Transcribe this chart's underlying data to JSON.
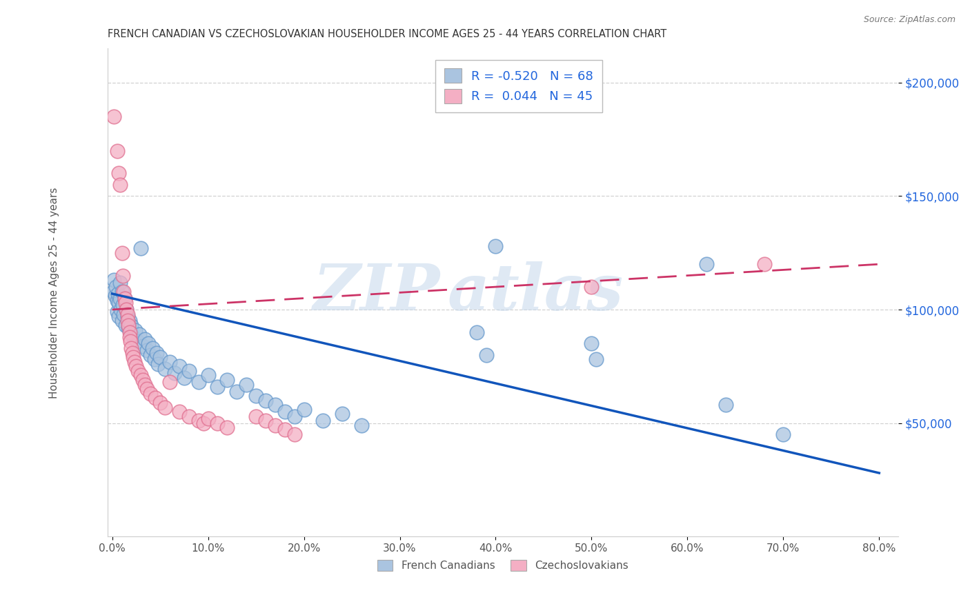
{
  "title": "FRENCH CANADIAN VS CZECHOSLOVAKIAN HOUSEHOLDER INCOME AGES 25 - 44 YEARS CORRELATION CHART",
  "source": "Source: ZipAtlas.com",
  "ylabel": "Householder Income Ages 25 - 44 years",
  "xlabel_ticks": [
    "0.0%",
    "10.0%",
    "20.0%",
    "30.0%",
    "40.0%",
    "50.0%",
    "60.0%",
    "70.0%",
    "80.0%"
  ],
  "ytick_labels": [
    "$50,000",
    "$100,000",
    "$150,000",
    "$200,000"
  ],
  "ytick_values": [
    50000,
    100000,
    150000,
    200000
  ],
  "xlim": [
    -0.005,
    0.82
  ],
  "ylim": [
    0,
    215000
  ],
  "blue_color": "#aac4e0",
  "pink_color": "#f4afc4",
  "blue_edge_color": "#6699cc",
  "pink_edge_color": "#e07090",
  "blue_line_color": "#1155bb",
  "pink_line_color": "#cc3366",
  "blue_scatter": [
    [
      0.001,
      108000
    ],
    [
      0.002,
      113000
    ],
    [
      0.003,
      106000
    ],
    [
      0.004,
      110000
    ],
    [
      0.005,
      104000
    ],
    [
      0.005,
      99000
    ],
    [
      0.006,
      107000
    ],
    [
      0.007,
      103000
    ],
    [
      0.007,
      97000
    ],
    [
      0.008,
      112000
    ],
    [
      0.008,
      105000
    ],
    [
      0.009,
      100000
    ],
    [
      0.01,
      108000
    ],
    [
      0.01,
      95000
    ],
    [
      0.011,
      102000
    ],
    [
      0.012,
      98000
    ],
    [
      0.013,
      105000
    ],
    [
      0.014,
      93000
    ],
    [
      0.015,
      100000
    ],
    [
      0.016,
      97000
    ],
    [
      0.017,
      92000
    ],
    [
      0.018,
      95000
    ],
    [
      0.019,
      90000
    ],
    [
      0.02,
      93000
    ],
    [
      0.022,
      88000
    ],
    [
      0.024,
      91000
    ],
    [
      0.026,
      86000
    ],
    [
      0.028,
      89000
    ],
    [
      0.03,
      127000
    ],
    [
      0.032,
      84000
    ],
    [
      0.034,
      87000
    ],
    [
      0.036,
      82000
    ],
    [
      0.038,
      85000
    ],
    [
      0.04,
      80000
    ],
    [
      0.042,
      83000
    ],
    [
      0.044,
      78000
    ],
    [
      0.046,
      81000
    ],
    [
      0.048,
      76000
    ],
    [
      0.05,
      79000
    ],
    [
      0.055,
      74000
    ],
    [
      0.06,
      77000
    ],
    [
      0.065,
      72000
    ],
    [
      0.07,
      75000
    ],
    [
      0.075,
      70000
    ],
    [
      0.08,
      73000
    ],
    [
      0.09,
      68000
    ],
    [
      0.1,
      71000
    ],
    [
      0.11,
      66000
    ],
    [
      0.12,
      69000
    ],
    [
      0.13,
      64000
    ],
    [
      0.14,
      67000
    ],
    [
      0.15,
      62000
    ],
    [
      0.16,
      60000
    ],
    [
      0.17,
      58000
    ],
    [
      0.18,
      55000
    ],
    [
      0.19,
      53000
    ],
    [
      0.2,
      56000
    ],
    [
      0.22,
      51000
    ],
    [
      0.24,
      54000
    ],
    [
      0.26,
      49000
    ],
    [
      0.38,
      90000
    ],
    [
      0.39,
      80000
    ],
    [
      0.4,
      128000
    ],
    [
      0.5,
      85000
    ],
    [
      0.505,
      78000
    ],
    [
      0.62,
      120000
    ],
    [
      0.64,
      58000
    ],
    [
      0.7,
      45000
    ]
  ],
  "pink_scatter": [
    [
      0.002,
      185000
    ],
    [
      0.005,
      170000
    ],
    [
      0.007,
      160000
    ],
    [
      0.008,
      155000
    ],
    [
      0.01,
      125000
    ],
    [
      0.011,
      115000
    ],
    [
      0.012,
      108000
    ],
    [
      0.013,
      105000
    ],
    [
      0.014,
      103000
    ],
    [
      0.015,
      100000
    ],
    [
      0.016,
      98000
    ],
    [
      0.016,
      95000
    ],
    [
      0.017,
      93000
    ],
    [
      0.018,
      90000
    ],
    [
      0.018,
      88000
    ],
    [
      0.019,
      86000
    ],
    [
      0.02,
      83000
    ],
    [
      0.021,
      81000
    ],
    [
      0.022,
      79000
    ],
    [
      0.023,
      77000
    ],
    [
      0.025,
      75000
    ],
    [
      0.027,
      73000
    ],
    [
      0.03,
      71000
    ],
    [
      0.032,
      69000
    ],
    [
      0.034,
      67000
    ],
    [
      0.036,
      65000
    ],
    [
      0.04,
      63000
    ],
    [
      0.045,
      61000
    ],
    [
      0.05,
      59000
    ],
    [
      0.055,
      57000
    ],
    [
      0.06,
      68000
    ],
    [
      0.07,
      55000
    ],
    [
      0.08,
      53000
    ],
    [
      0.09,
      51000
    ],
    [
      0.095,
      50000
    ],
    [
      0.1,
      52000
    ],
    [
      0.11,
      50000
    ],
    [
      0.12,
      48000
    ],
    [
      0.15,
      53000
    ],
    [
      0.16,
      51000
    ],
    [
      0.17,
      49000
    ],
    [
      0.18,
      47000
    ],
    [
      0.19,
      45000
    ],
    [
      0.5,
      110000
    ],
    [
      0.68,
      120000
    ]
  ],
  "blue_line_x0": 0.0,
  "blue_line_y0": 107000,
  "blue_line_x1": 0.8,
  "blue_line_y1": 28000,
  "pink_line_x0": 0.0,
  "pink_line_y0": 100000,
  "pink_line_x1": 0.8,
  "pink_line_y1": 120000,
  "blue_R": "-0.520",
  "blue_N": "68",
  "pink_R": "0.044",
  "pink_N": "45",
  "watermark_text": "ZIP",
  "watermark_text2": "atlas",
  "background_color": "#ffffff",
  "grid_color": "#cccccc",
  "legend_label_blue": "French Canadians",
  "legend_label_pink": "Czechoslovakians"
}
